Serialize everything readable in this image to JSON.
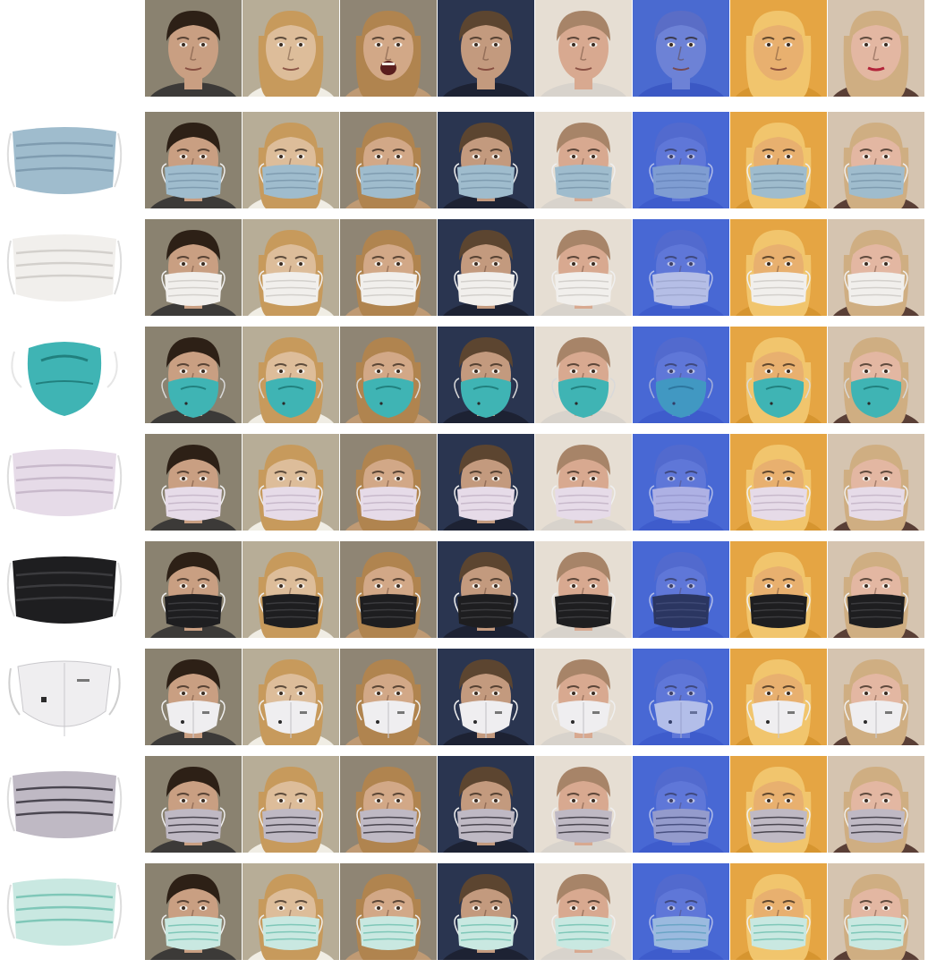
{
  "faces": [
    {
      "id": "face-1",
      "bg": "#8a8270",
      "skin": "#c99f82",
      "hair": "#2d2016",
      "cloth": "#3c3a38"
    },
    {
      "id": "face-2",
      "bg": "#b7ad97",
      "skin": "#ddbd9a",
      "hair": "#c79a5c",
      "cloth": "#f0ede4"
    },
    {
      "id": "face-3",
      "bg": "#8f8574",
      "skin": "#d2a887",
      "hair": "#b0844f",
      "cloth": "#bf9a74"
    },
    {
      "id": "face-4",
      "bg": "#2a3550",
      "skin": "#c39a7e",
      "hair": "#5c4530",
      "cloth": "#1d2233"
    },
    {
      "id": "face-5",
      "bg": "#e6ded3",
      "skin": "#d8a990",
      "hair": "#a78468",
      "cloth": "#d8d3cc"
    },
    {
      "id": "face-6",
      "bg": "#4a6ad0",
      "skin": "#6d82d6",
      "hair": "#5a6dc6",
      "cloth": "#3b58c4"
    },
    {
      "id": "face-7",
      "bg": "#e5a543",
      "skin": "#e8b06f",
      "hair": "#f1c56d",
      "cloth": "#d69530"
    },
    {
      "id": "face-8",
      "bg": "#d5c4b0",
      "skin": "#e3b7a2",
      "hair": "#cfae82",
      "cloth": "#5a3f36"
    }
  ],
  "masks": [
    {
      "id": "surgical-blue",
      "name": "surgical-blue-mask",
      "color": "#9fbccd",
      "shade": "#7f9cb0",
      "style": "pleated",
      "straps": "ear-loops"
    },
    {
      "id": "surgical-white",
      "name": "surgical-white-mask",
      "color": "#f1efec",
      "shade": "#d3d0cc",
      "style": "pleated",
      "straps": "ear-loops"
    },
    {
      "id": "n95-teal",
      "name": "n95-teal-respirator",
      "color": "#3fb4b4",
      "shade": "#21807e",
      "style": "cup",
      "straps": "head-straps"
    },
    {
      "id": "surgical-lilac",
      "name": "surgical-lilac-mask",
      "color": "#e6dbe8",
      "shade": "#c8b9cb",
      "style": "pleated",
      "straps": "ear-loops"
    },
    {
      "id": "black-cloth",
      "name": "black-cloth-mask",
      "color": "#1e1e20",
      "shade": "#3b3b3e",
      "style": "pleated",
      "straps": "ear-loops"
    },
    {
      "id": "kn95-white",
      "name": "kn95-white-respirator",
      "color": "#efeef0",
      "shade": "#c9c8cc",
      "style": "fold",
      "straps": "ear-loops"
    },
    {
      "id": "surgical-grey",
      "name": "surgical-grey-mask",
      "color": "#bfb9c4",
      "shade": "#4a4650",
      "style": "pleated",
      "straps": "ear-loops"
    },
    {
      "id": "surgical-mint",
      "name": "surgical-mint-mask",
      "color": "#c9e8e1",
      "shade": "#7fc7b8",
      "style": "pleated",
      "straps": "ear-loops"
    }
  ]
}
